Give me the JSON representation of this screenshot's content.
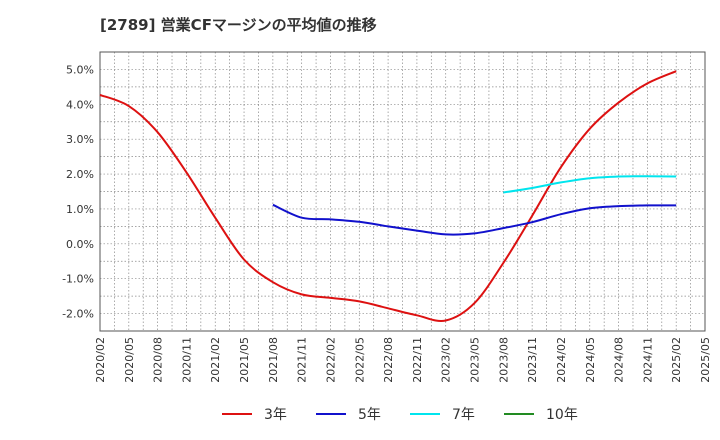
{
  "chart_data": {
    "type": "line",
    "title": "[2789]  営業CFマージンの平均値の推移",
    "xlabel": "",
    "ylabel": "",
    "x": [
      "2020/02",
      "2020/05",
      "2020/08",
      "2020/11",
      "2021/02",
      "2021/05",
      "2021/08",
      "2021/11",
      "2022/02",
      "2022/05",
      "2022/08",
      "2022/11",
      "2023/02",
      "2023/05",
      "2023/08",
      "2023/11",
      "2024/02",
      "2024/05",
      "2024/08",
      "2024/11",
      "2025/02",
      "2025/05"
    ],
    "y_ticks": [
      "5.0%",
      "4.0%",
      "3.0%",
      "2.0%",
      "1.0%",
      "0.0%",
      "-1.0%",
      "-2.0%"
    ],
    "ylim": [
      -2.5,
      5.5
    ],
    "grid": true,
    "legend_position": "bottom",
    "series": [
      {
        "name": "3年",
        "color": "#dd1111",
        "values": [
          4.27,
          3.95,
          3.2,
          2.05,
          0.75,
          -0.45,
          -1.1,
          -1.45,
          -1.55,
          -1.65,
          -1.85,
          -2.05,
          -2.2,
          -1.7,
          -0.55,
          0.8,
          2.2,
          3.3,
          4.05,
          4.6,
          4.95,
          null
        ]
      },
      {
        "name": "5年",
        "color": "#1111cc",
        "values": [
          null,
          null,
          null,
          null,
          null,
          null,
          1.12,
          0.75,
          0.7,
          0.63,
          0.5,
          0.38,
          0.27,
          0.3,
          0.45,
          0.62,
          0.85,
          1.02,
          1.08,
          1.1,
          1.1,
          null
        ]
      },
      {
        "name": "7年",
        "color": "#00e5ee",
        "values": [
          null,
          null,
          null,
          null,
          null,
          null,
          null,
          null,
          null,
          null,
          null,
          null,
          null,
          null,
          1.47,
          1.6,
          1.76,
          1.88,
          1.93,
          1.94,
          1.93,
          null
        ]
      },
      {
        "name": "10年",
        "color": "#228b22",
        "values": [
          null,
          null,
          null,
          null,
          null,
          null,
          null,
          null,
          null,
          null,
          null,
          null,
          null,
          null,
          null,
          null,
          null,
          null,
          null,
          null,
          null,
          null
        ]
      }
    ]
  }
}
